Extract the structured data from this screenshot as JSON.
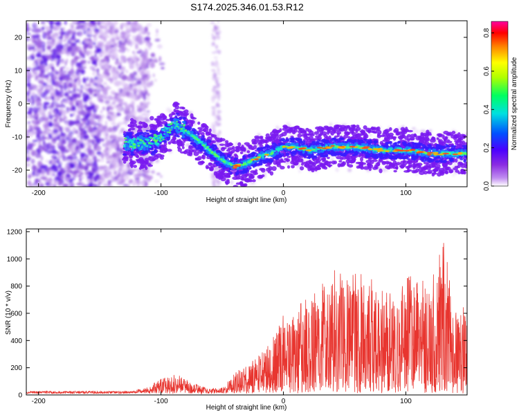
{
  "title": "S174.2025.346.01.53.R12",
  "colors": {
    "snr_line": "#e8352f",
    "spectrogram_colormap": [
      "#ffffff",
      "#c08cf0",
      "#8a2be2",
      "#4b00ff",
      "#0050ff",
      "#00e0e0",
      "#00ff60",
      "#b0ff00",
      "#ffff00",
      "#ff8000",
      "#ff0000",
      "#ff00a0"
    ]
  },
  "chart_data": [
    {
      "type": "heatmap",
      "xlabel": "Height of straight line (km)",
      "ylabel": "Frequency (Hz)",
      "xlim": [
        -210,
        150
      ],
      "ylim": [
        -25,
        25
      ],
      "xticks": [
        -200,
        -100,
        0,
        100
      ],
      "yticks": [
        -20,
        -10,
        0,
        10,
        20
      ],
      "colorbar": {
        "label": "Normalized spectral amplitude",
        "range": [
          0,
          0.86
        ],
        "ticks": [
          "0.0",
          "0.2",
          "0.4",
          "0.6",
          "0.8"
        ]
      },
      "band": {
        "x": [
          -130,
          -110,
          -100,
          -88,
          -80,
          -70,
          -60,
          -50,
          -40,
          -30,
          -20,
          -10,
          0,
          10,
          20,
          40,
          60,
          80,
          100,
          120,
          150
        ],
        "y": [
          -12,
          -12,
          -10,
          -6,
          -8,
          -11,
          -14,
          -17,
          -19,
          -18,
          -16,
          -15,
          -13,
          -13,
          -14,
          -13,
          -13,
          -14,
          -14,
          -15,
          -15
        ]
      },
      "noise_region_x": [
        -210,
        -110
      ],
      "noise_column_x": [
        -58,
        -52
      ]
    },
    {
      "type": "line",
      "xlabel": "Height of straight line (km)",
      "ylabel": "SNR (10 * v/v)",
      "xlim": [
        -210,
        150
      ],
      "ylim": [
        0,
        1220
      ],
      "xticks": [
        -200,
        -100,
        0,
        100
      ],
      "yticks": [
        0,
        200,
        400,
        600,
        800,
        1000,
        1200
      ],
      "envelope": {
        "x": [
          -210,
          -120,
          -110,
          -100,
          -90,
          -80,
          -70,
          -60,
          -50,
          -40,
          -30,
          -20,
          -10,
          0,
          10,
          20,
          30,
          40,
          50,
          60,
          70,
          80,
          90,
          100,
          110,
          120,
          130,
          140,
          150
        ],
        "y": [
          20,
          25,
          40,
          120,
          150,
          110,
          70,
          30,
          40,
          150,
          210,
          280,
          420,
          640,
          560,
          800,
          780,
          980,
          830,
          900,
          880,
          820,
          720,
          880,
          870,
          780,
          1180,
          700,
          680
        ]
      }
    }
  ]
}
